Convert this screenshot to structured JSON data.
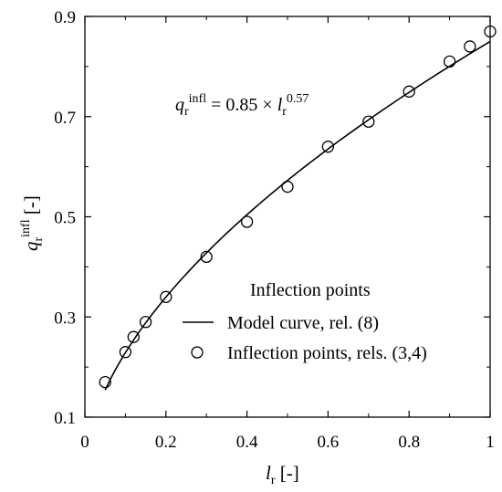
{
  "chart_data": {
    "type": "scatter",
    "title": "",
    "xlim": [
      0,
      1
    ],
    "ylim": [
      0.1,
      0.9
    ],
    "xticks": [
      0,
      0.2,
      0.4,
      0.6,
      0.8,
      1
    ],
    "xtick_labels": [
      "0",
      "0.2",
      "0.4",
      "0.6",
      "0.8",
      "1"
    ],
    "yticks": [
      0.1,
      0.3,
      0.5,
      0.7,
      0.9
    ],
    "ytick_labels": [
      "0.1",
      "0.3",
      "0.5",
      "0.7",
      "0.9"
    ],
    "xlabel": {
      "var": "l",
      "sub": "r",
      "unit": " [-]"
    },
    "ylabel": {
      "var": "q",
      "sub": "r",
      "sup": "infl",
      "unit": " [-]"
    },
    "grid": false,
    "legend_position": "bottom-right",
    "legend_title": "Inflection points",
    "equation": {
      "lhs_var": "q",
      "lhs_sub": "r",
      "lhs_sup": "infl",
      "mid": " = 0.85 × ",
      "rhs_var": "l",
      "rhs_sub": "r",
      "rhs_sup": "0.57"
    },
    "series": [
      {
        "name": "Model curve, rel. (8)",
        "kind": "line",
        "coefficient": 0.85,
        "exponent": 0.57,
        "x_range": [
          0.05,
          1.0
        ],
        "color": "#000000"
      },
      {
        "name": "Inflection points, rels. (3,4)",
        "kind": "scatter",
        "marker": "open-circle",
        "x": [
          0.05,
          0.1,
          0.12,
          0.15,
          0.2,
          0.3,
          0.4,
          0.5,
          0.6,
          0.7,
          0.8,
          0.9,
          0.95,
          1.0
        ],
        "y": [
          0.17,
          0.23,
          0.26,
          0.29,
          0.34,
          0.42,
          0.49,
          0.56,
          0.64,
          0.69,
          0.75,
          0.81,
          0.84,
          0.87
        ],
        "color": "#000000"
      }
    ]
  }
}
